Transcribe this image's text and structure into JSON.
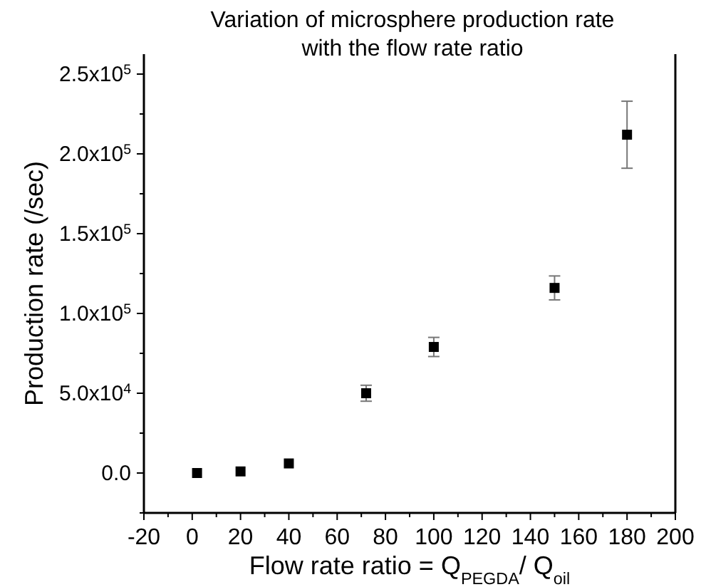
{
  "chart_data": {
    "type": "scatter",
    "title": "Variation of microsphere production rate with the flow rate ratio",
    "xlabel": "Flow rate ratio = Q$_{PEGDA}$/ Q$_{oil}$",
    "ylabel": "Production rate (/sec)",
    "x": [
      2,
      20,
      40,
      72,
      100,
      150,
      180
    ],
    "values": [
      0,
      1000,
      6000,
      50000,
      79000,
      116000,
      212000
    ],
    "errors": [
      null,
      null,
      null,
      5000,
      6000,
      7500,
      21000
    ],
    "color": "#000000",
    "marker": "square",
    "xlim": [
      -20,
      200
    ],
    "xticks": [
      -20,
      0,
      20,
      40,
      60,
      80,
      100,
      120,
      140,
      160,
      180,
      200
    ],
    "ylim": [
      -25000,
      262500
    ],
    "yticks": [
      {
        "value": 0,
        "label": "0.0"
      },
      {
        "value": 50000,
        "label": "5.0x10$^{4}$"
      },
      {
        "value": 100000,
        "label": "1.0x10$^{5}$"
      },
      {
        "value": 150000,
        "label": "1.5x10$^{5}$"
      },
      {
        "value": 200000,
        "label": "2.0x10$^{5}$"
      },
      {
        "value": 250000,
        "label": "2.5x10$^{5}$"
      }
    ],
    "grid": false
  }
}
